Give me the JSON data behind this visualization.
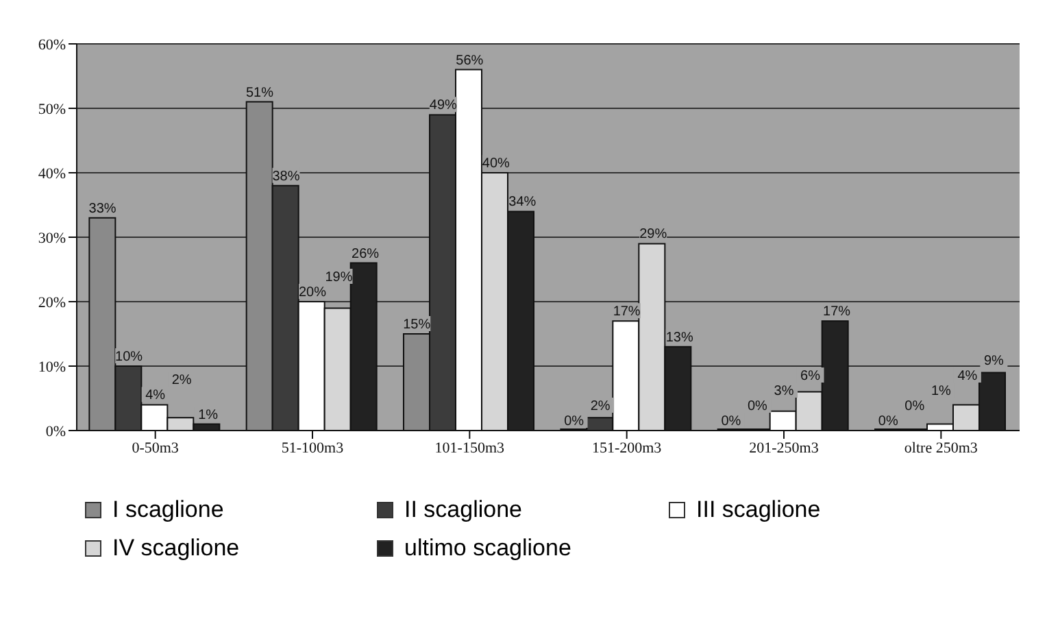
{
  "chart_data": {
    "type": "bar",
    "categories": [
      "0-50m3",
      "51-100m3",
      "101-150m3",
      "151-200m3",
      "201-250m3",
      "oltre 250m3"
    ],
    "series": [
      {
        "name": "I scaglione",
        "color": "#8a8a8a",
        "values": [
          33,
          51,
          15,
          0,
          0,
          0
        ],
        "value_labels": [
          "33%",
          "51%",
          "15%",
          "0%",
          "0%",
          "0%"
        ]
      },
      {
        "name": "II scaglione",
        "color": "#3c3c3c",
        "values": [
          10,
          38,
          49,
          2,
          0,
          0
        ],
        "value_labels": [
          "10%",
          "38%",
          "49%",
          "2%",
          "0%",
          "0%"
        ]
      },
      {
        "name": "III scaglione",
        "color": "#ffffff",
        "values": [
          4,
          20,
          56,
          17,
          3,
          1
        ],
        "value_labels": [
          "4%",
          "20%",
          "56%",
          "17%",
          "3%",
          "1%"
        ]
      },
      {
        "name": "IV scaglione",
        "color": "#d6d6d6",
        "values": [
          2,
          19,
          40,
          29,
          6,
          4
        ],
        "value_labels": [
          "2%",
          "19%",
          "40%",
          "29%",
          "6%",
          "4%"
        ]
      },
      {
        "name": "ultimo scaglione",
        "color": "#222222",
        "values": [
          1,
          26,
          34,
          13,
          17,
          9
        ],
        "value_labels": [
          "1%",
          "26%",
          "34%",
          "13%",
          "17%",
          "9%"
        ]
      }
    ],
    "ylim": [
      0,
      60
    ],
    "yticks": [
      {
        "value": 0,
        "label": "0%"
      },
      {
        "value": 10,
        "label": "10%"
      },
      {
        "value": 20,
        "label": "20%"
      },
      {
        "value": 30,
        "label": "30%"
      },
      {
        "value": 40,
        "label": "40%"
      },
      {
        "value": 50,
        "label": "50%"
      },
      {
        "value": 60,
        "label": "60%"
      }
    ],
    "grid": "y",
    "legend": "bottom"
  }
}
